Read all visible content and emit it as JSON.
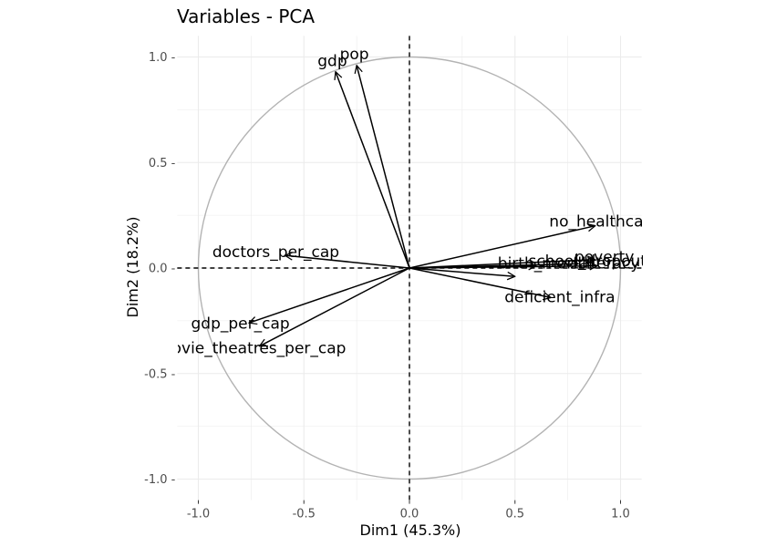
{
  "chart_data": {
    "type": "pca-variable-plot",
    "title": "Variables - PCA",
    "xlabel": "Dim1 (45.3%)",
    "ylabel": "Dim2 (18.2%)",
    "xlim": [
      -1.1,
      1.1
    ],
    "ylim": [
      -1.1,
      1.1
    ],
    "xticks": [
      -1.0,
      -0.5,
      0.0,
      0.5,
      1.0
    ],
    "yticks": [
      -1.0,
      -0.5,
      0.0,
      0.5,
      1.0
    ],
    "xtick_labels": [
      "-1.0",
      "-0.5",
      "0.0",
      "0.5",
      "1.0"
    ],
    "ytick_labels": [
      "-1.0 -",
      "-0.5 -",
      "0.0 -",
      "0.5 -",
      "1.0 -"
    ],
    "grid": true,
    "unit_circle": true,
    "colors": {
      "arrow": "#000000",
      "circle": "#b3b3b3",
      "grid": "#ebebeb"
    },
    "variables": [
      {
        "name": "pop",
        "x": -0.25,
        "y": 0.96
      },
      {
        "name": "gdp",
        "x": -0.35,
        "y": 0.93
      },
      {
        "name": "no_healthcare",
        "x": 0.88,
        "y": 0.2
      },
      {
        "name": "poverty",
        "x": 0.88,
        "y": 0.04
      },
      {
        "name": "illiteracy",
        "x": 0.89,
        "y": 0.01
      },
      {
        "name": "school_dropout",
        "x": 0.8,
        "y": 0.02
      },
      {
        "name": "birth_mortal",
        "x": 0.6,
        "y": 0.01
      },
      {
        "name": "deficient_infra",
        "x": 0.67,
        "y": -0.14
      },
      {
        "name": "doctors_per_cap",
        "x": -0.59,
        "y": 0.06
      },
      {
        "name": "gdp_per_cap",
        "x": -0.76,
        "y": -0.26
      },
      {
        "name": "movie_theatres_per_cap",
        "x": -0.71,
        "y": -0.37
      },
      {
        "name": "",
        "x": 0.5,
        "y": -0.04
      }
    ]
  }
}
